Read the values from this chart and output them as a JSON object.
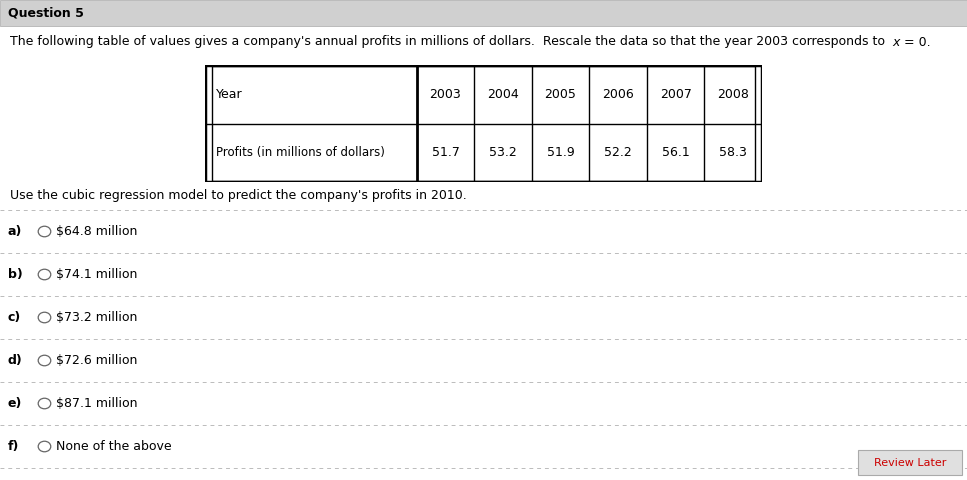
{
  "title": "Question 5",
  "question_text_before": "The following table of values gives a company's annual profits in millions of dollars.  Rescale the data so that the year 2003 corresponds to  ",
  "question_text_italic": "x",
  "question_text_after": " = 0.",
  "table_col_header": "Year",
  "table_years": [
    "2003",
    "2004",
    "2005",
    "2006",
    "2007",
    "2008"
  ],
  "table_row_label": "Profits (in millions of dollars)",
  "table_values": [
    "51.7",
    "53.2",
    "51.9",
    "52.2",
    "56.1",
    "58.3"
  ],
  "predict_text": "Use the cubic regression model to predict the company's profits in 2010.",
  "choices": [
    {
      "label": "a)",
      "text": "$64.8 million"
    },
    {
      "label": "b)",
      "text": "$74.1 million"
    },
    {
      "label": "c)",
      "text": "$73.2 million"
    },
    {
      "label": "d)",
      "text": "$72.6 million"
    },
    {
      "label": "e)",
      "text": "$87.1 million"
    },
    {
      "label": "f)",
      "text": "None of the above"
    }
  ],
  "review_later_text": "Review Later",
  "bg_color": "#f0f0f0",
  "title_bg_color": "#d0d0d0",
  "white_bg": "#ffffff",
  "review_btn_bg": "#e0e0e0",
  "review_btn_border": "#aaaaaa",
  "divider_color": "#bbbbbb",
  "text_color": "#000000",
  "title_font_size": 9,
  "body_font_size": 9,
  "table_font_size": 9,
  "choice_font_size": 9
}
